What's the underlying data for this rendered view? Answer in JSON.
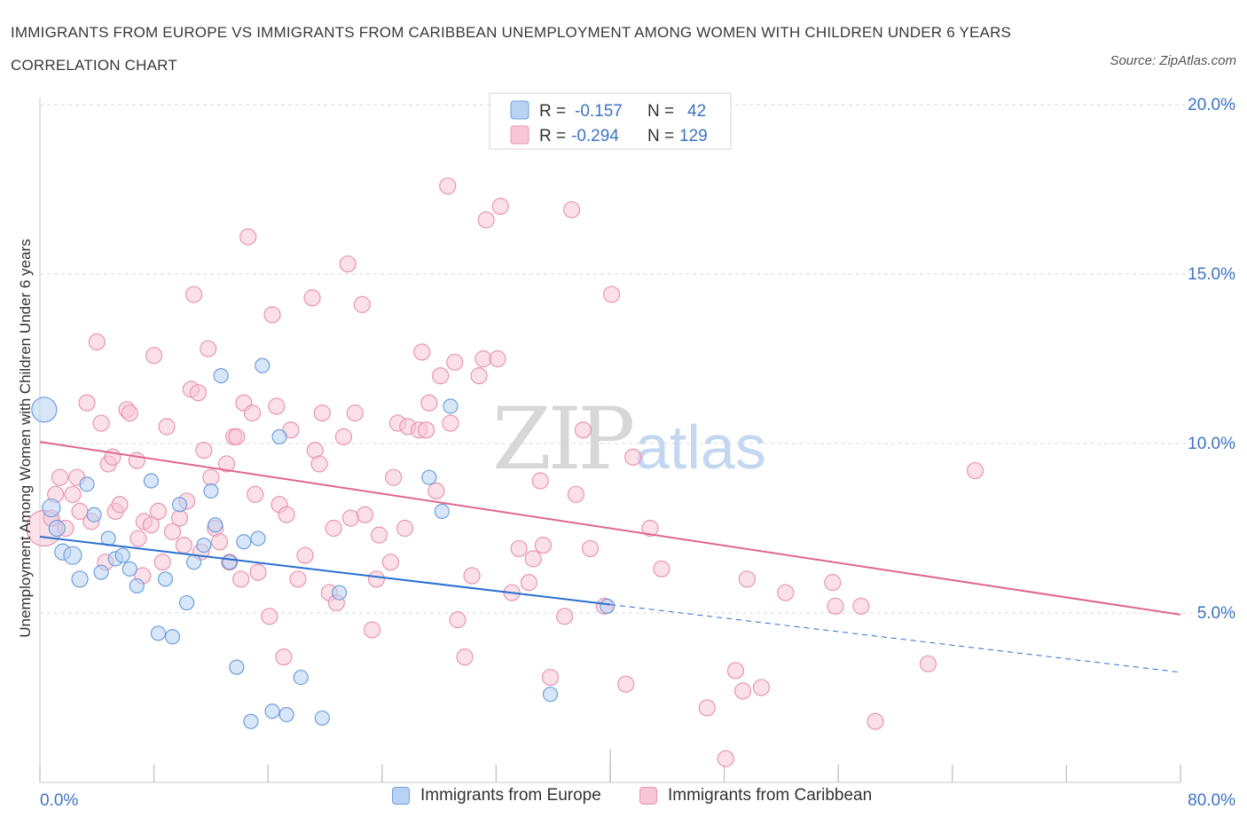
{
  "header": {
    "title": "IMMIGRANTS FROM EUROPE VS IMMIGRANTS FROM CARIBBEAN UNEMPLOYMENT AMONG WOMEN WITH CHILDREN UNDER 6 YEARS CORRELATION CHART",
    "source": "Source: ZipAtlas.com"
  },
  "watermark": {
    "zip": "ZIP",
    "atlas": "atlas"
  },
  "legend_top": {
    "rows": [
      {
        "r_label": "R =",
        "r_value": "-0.157",
        "n_label": "N =",
        "n_value": "42"
      },
      {
        "r_label": "R =",
        "r_value": "-0.294",
        "n_label": "N =",
        "n_value": "129"
      }
    ]
  },
  "legend_bottom": {
    "europe": "Immigrants from Europe",
    "caribbean": "Immigrants from Caribbean"
  },
  "colors": {
    "europe_fill": "#b8d2f4",
    "europe_stroke": "#6f9fdc",
    "europe_line": "#2b6fd0",
    "caribbean_fill": "#f8c6d6",
    "caribbean_stroke": "#e895b1",
    "caribbean_line": "#e06690",
    "tick_label": "#3d74c4",
    "grid": "#d9d9d9"
  },
  "chart_data": {
    "type": "scatter",
    "title": "IMMIGRANTS FROM EUROPE VS IMMIGRANTS FROM CARIBBEAN UNEMPLOYMENT AMONG WOMEN WITH CHILDREN UNDER 6 YEARS CORRELATION CHART",
    "xlabel": "",
    "ylabel": "Unemployment Among Women with Children Under 6 years",
    "xlim": [
      0,
      80
    ],
    "ylim": [
      0,
      20
    ],
    "x_tick_labels": [
      "0.0%",
      "80.0%"
    ],
    "y_ticks": [
      5,
      10,
      15,
      20
    ],
    "y_tick_labels": [
      "5.0%",
      "10.0%",
      "15.0%",
      "20.0%"
    ],
    "grid": true,
    "legend_position": "top-center",
    "series": [
      {
        "name": "Immigrants from Europe",
        "r": -0.157,
        "n": 42,
        "trend": {
          "x": [
            0,
            40,
            80
          ],
          "y": [
            7.25,
            5.25,
            3.25
          ],
          "solid_until_x": 40
        },
        "points": [
          [
            0.3,
            11.0,
            14
          ],
          [
            0.8,
            8.1,
            10
          ],
          [
            1.2,
            7.5,
            9
          ],
          [
            1.6,
            6.8,
            9
          ],
          [
            2.3,
            6.7,
            10
          ],
          [
            2.8,
            6.0,
            9
          ],
          [
            3.3,
            8.8,
            8
          ],
          [
            3.8,
            7.9,
            8
          ],
          [
            4.3,
            6.2,
            8
          ],
          [
            4.8,
            7.2,
            8
          ],
          [
            5.3,
            6.6,
            8
          ],
          [
            5.8,
            6.7,
            8
          ],
          [
            6.3,
            6.3,
            8
          ],
          [
            6.8,
            5.8,
            8
          ],
          [
            7.8,
            8.9,
            8
          ],
          [
            8.3,
            4.4,
            8
          ],
          [
            8.8,
            6.0,
            8
          ],
          [
            9.3,
            4.3,
            8
          ],
          [
            9.8,
            8.2,
            8
          ],
          [
            10.3,
            5.3,
            8
          ],
          [
            10.8,
            6.5,
            8
          ],
          [
            11.5,
            7.0,
            8
          ],
          [
            12.0,
            8.6,
            8
          ],
          [
            12.3,
            7.6,
            8
          ],
          [
            12.7,
            12.0,
            8
          ],
          [
            13.3,
            6.5,
            8
          ],
          [
            13.8,
            3.4,
            8
          ],
          [
            14.3,
            7.1,
            8
          ],
          [
            14.8,
            1.8,
            8
          ],
          [
            15.3,
            7.2,
            8
          ],
          [
            15.6,
            12.3,
            8
          ],
          [
            16.3,
            2.1,
            8
          ],
          [
            16.8,
            10.2,
            8
          ],
          [
            17.3,
            2.0,
            8
          ],
          [
            18.3,
            3.1,
            8
          ],
          [
            19.8,
            1.9,
            8
          ],
          [
            21.0,
            5.6,
            8
          ],
          [
            27.3,
            9.0,
            8
          ],
          [
            28.2,
            8.0,
            8
          ],
          [
            28.8,
            11.1,
            8
          ],
          [
            35.8,
            2.6,
            8
          ],
          [
            39.8,
            5.2,
            8
          ]
        ]
      },
      {
        "name": "Immigrants from Caribbean",
        "r": -0.294,
        "n": 129,
        "trend": {
          "x": [
            0,
            80
          ],
          "y": [
            10.05,
            4.95
          ]
        },
        "points": [
          [
            0.3,
            7.5,
            20
          ],
          [
            0.8,
            7.8,
            9
          ],
          [
            1.1,
            8.5,
            9
          ],
          [
            1.4,
            9.0,
            9
          ],
          [
            1.8,
            7.5,
            9
          ],
          [
            2.3,
            8.5,
            9
          ],
          [
            2.6,
            9.0,
            9
          ],
          [
            2.8,
            8.0,
            9
          ],
          [
            3.3,
            11.2,
            9
          ],
          [
            3.6,
            7.7,
            9
          ],
          [
            4.0,
            13.0,
            9
          ],
          [
            4.3,
            10.6,
            9
          ],
          [
            4.6,
            6.5,
            9
          ],
          [
            4.8,
            9.4,
            9
          ],
          [
            5.1,
            9.6,
            9
          ],
          [
            5.3,
            8.0,
            9
          ],
          [
            5.6,
            8.2,
            9
          ],
          [
            6.1,
            11.0,
            9
          ],
          [
            6.3,
            10.9,
            9
          ],
          [
            6.8,
            9.5,
            9
          ],
          [
            6.9,
            7.2,
            9
          ],
          [
            7.2,
            6.1,
            9
          ],
          [
            7.3,
            7.7,
            9
          ],
          [
            7.8,
            7.6,
            9
          ],
          [
            8.0,
            12.6,
            9
          ],
          [
            8.3,
            8.0,
            9
          ],
          [
            8.6,
            6.5,
            9
          ],
          [
            8.9,
            10.5,
            9
          ],
          [
            9.3,
            7.4,
            9
          ],
          [
            9.8,
            7.8,
            9
          ],
          [
            10.1,
            7.0,
            9
          ],
          [
            10.3,
            8.3,
            9
          ],
          [
            10.6,
            11.6,
            9
          ],
          [
            10.8,
            14.4,
            9
          ],
          [
            11.1,
            11.5,
            9
          ],
          [
            11.3,
            6.8,
            9
          ],
          [
            11.5,
            9.8,
            9
          ],
          [
            11.8,
            12.8,
            9
          ],
          [
            12.0,
            9.0,
            9
          ],
          [
            12.3,
            7.5,
            9
          ],
          [
            12.6,
            7.1,
            9
          ],
          [
            13.1,
            9.4,
            9
          ],
          [
            13.3,
            6.5,
            9
          ],
          [
            13.6,
            10.2,
            9
          ],
          [
            13.8,
            10.2,
            9
          ],
          [
            14.1,
            6.0,
            9
          ],
          [
            14.3,
            11.2,
            9
          ],
          [
            14.6,
            16.1,
            9
          ],
          [
            14.9,
            10.9,
            9
          ],
          [
            15.1,
            8.5,
            9
          ],
          [
            15.3,
            6.2,
            9
          ],
          [
            16.1,
            4.9,
            9
          ],
          [
            16.3,
            13.8,
            9
          ],
          [
            16.6,
            11.1,
            9
          ],
          [
            16.8,
            8.2,
            9
          ],
          [
            17.1,
            3.7,
            9
          ],
          [
            17.3,
            7.9,
            9
          ],
          [
            17.6,
            10.4,
            9
          ],
          [
            18.1,
            6.0,
            9
          ],
          [
            18.6,
            6.7,
            9
          ],
          [
            19.1,
            14.3,
            9
          ],
          [
            19.3,
            9.8,
            9
          ],
          [
            19.6,
            9.4,
            9
          ],
          [
            19.8,
            10.9,
            9
          ],
          [
            20.3,
            5.6,
            9
          ],
          [
            20.6,
            7.5,
            9
          ],
          [
            20.8,
            5.3,
            9
          ],
          [
            21.3,
            10.2,
            9
          ],
          [
            21.6,
            15.3,
            9
          ],
          [
            21.8,
            7.8,
            9
          ],
          [
            22.1,
            10.9,
            9
          ],
          [
            22.6,
            14.1,
            9
          ],
          [
            22.8,
            7.9,
            9
          ],
          [
            23.3,
            4.5,
            9
          ],
          [
            23.6,
            6.0,
            9
          ],
          [
            23.8,
            7.3,
            9
          ],
          [
            24.6,
            6.5,
            9
          ],
          [
            24.8,
            9.0,
            9
          ],
          [
            25.1,
            10.6,
            9
          ],
          [
            25.6,
            7.5,
            9
          ],
          [
            25.8,
            10.5,
            9
          ],
          [
            26.6,
            10.4,
            9
          ],
          [
            26.8,
            12.7,
            9
          ],
          [
            27.1,
            10.4,
            9
          ],
          [
            27.3,
            11.2,
            9
          ],
          [
            27.8,
            8.6,
            9
          ],
          [
            28.1,
            12.0,
            9
          ],
          [
            28.6,
            17.6,
            9
          ],
          [
            28.8,
            10.6,
            9
          ],
          [
            29.1,
            12.4,
            9
          ],
          [
            29.3,
            4.8,
            9
          ],
          [
            29.8,
            3.7,
            9
          ],
          [
            30.3,
            6.1,
            9
          ],
          [
            30.8,
            12.0,
            9
          ],
          [
            31.1,
            12.5,
            9
          ],
          [
            31.3,
            16.6,
            9
          ],
          [
            32.1,
            12.5,
            9
          ],
          [
            32.3,
            17.0,
            9
          ],
          [
            33.1,
            5.6,
            9
          ],
          [
            33.6,
            6.9,
            9
          ],
          [
            34.3,
            5.9,
            9
          ],
          [
            34.6,
            6.6,
            9
          ],
          [
            35.1,
            8.9,
            9
          ],
          [
            35.3,
            7.0,
            9
          ],
          [
            35.8,
            3.1,
            9
          ],
          [
            36.8,
            4.9,
            9
          ],
          [
            37.3,
            16.9,
            9
          ],
          [
            37.6,
            8.5,
            9
          ],
          [
            38.1,
            10.4,
            9
          ],
          [
            38.6,
            6.9,
            9
          ],
          [
            39.6,
            5.2,
            9
          ],
          [
            40.1,
            14.4,
            9
          ],
          [
            41.1,
            2.9,
            9
          ],
          [
            41.6,
            9.6,
            9
          ],
          [
            42.8,
            7.5,
            9
          ],
          [
            43.6,
            6.3,
            9
          ],
          [
            46.8,
            2.2,
            9
          ],
          [
            48.1,
            0.7,
            9
          ],
          [
            48.8,
            3.3,
            9
          ],
          [
            49.3,
            2.7,
            9
          ],
          [
            49.6,
            6.0,
            9
          ],
          [
            50.6,
            2.8,
            9
          ],
          [
            52.3,
            5.6,
            9
          ],
          [
            55.6,
            5.9,
            9
          ],
          [
            55.8,
            5.2,
            9
          ],
          [
            57.6,
            5.2,
            9
          ],
          [
            58.6,
            1.8,
            9
          ],
          [
            62.3,
            3.5,
            9
          ],
          [
            65.6,
            9.2,
            9
          ]
        ]
      }
    ]
  }
}
